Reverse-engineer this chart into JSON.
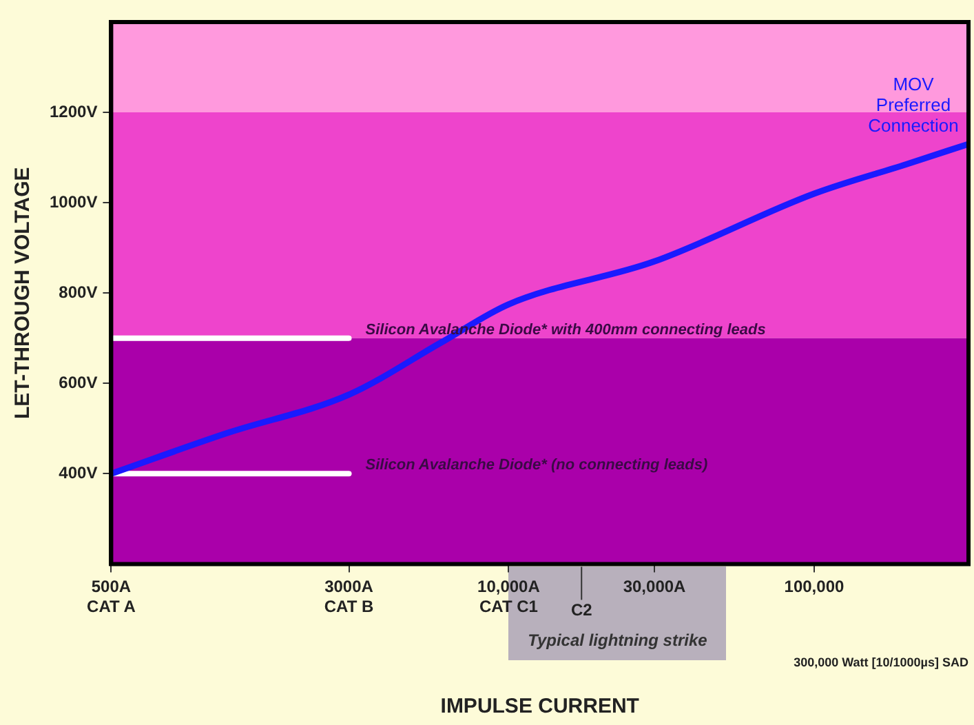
{
  "chart_data": {
    "type": "line",
    "xlabel": "IMPULSE CURRENT",
    "ylabel": "LET-THROUGH VOLTAGE",
    "log": "x",
    "grid": false,
    "legend": false,
    "marker": "none",
    "line_style": "solid",
    "xlim": [
      500,
      320000
    ],
    "ylim": [
      200,
      1400
    ],
    "xticks": [
      {
        "value": 500,
        "label": "500A\nCAT A"
      },
      {
        "value": 3000,
        "label": "3000A\nCAT B"
      },
      {
        "value": 10000,
        "label": "10,000A\nCAT C1"
      },
      {
        "value": 30000,
        "label": "30,000A"
      },
      {
        "value": 100000,
        "label": "100,000"
      }
    ],
    "yticks": [
      {
        "value": 400,
        "label": "400V"
      },
      {
        "value": 600,
        "label": "600V"
      },
      {
        "value": 800,
        "label": "800V"
      },
      {
        "value": 1000,
        "label": "1000V"
      },
      {
        "value": 1200,
        "label": "1200V"
      }
    ],
    "series": [
      {
        "name": "MOV Preferred Connection",
        "color": "#1a1aff",
        "x": [
          500,
          1200,
          3000,
          6000,
          10000,
          30000,
          100000,
          200000,
          320000
        ],
        "values": [
          400,
          490,
          575,
          690,
          775,
          870,
          1020,
          1085,
          1130
        ]
      },
      {
        "name": "Silicon Avalanche Diode* with 400mm connecting leads",
        "color": "#ffffff",
        "x": [
          500,
          3000
        ],
        "values": [
          700,
          700
        ]
      },
      {
        "name": "Silicon Avalanche Diode* (no connecting leads)",
        "color": "#ffffff",
        "x": [
          500,
          3000
        ],
        "values": [
          400,
          400
        ]
      }
    ],
    "bands": [
      {
        "axis": "y",
        "from": 1200,
        "to": 1400,
        "color": "#ff99dd"
      },
      {
        "axis": "y",
        "from": 700,
        "to": 1200,
        "color": "#ee44cc"
      },
      {
        "axis": "y",
        "from": 200,
        "to": 700,
        "color": "#aa00aa"
      }
    ],
    "annotations": [
      "C2",
      "300,000 Watt [10/1000µs] SAD",
      "Typical lightning strike"
    ]
  }
}
